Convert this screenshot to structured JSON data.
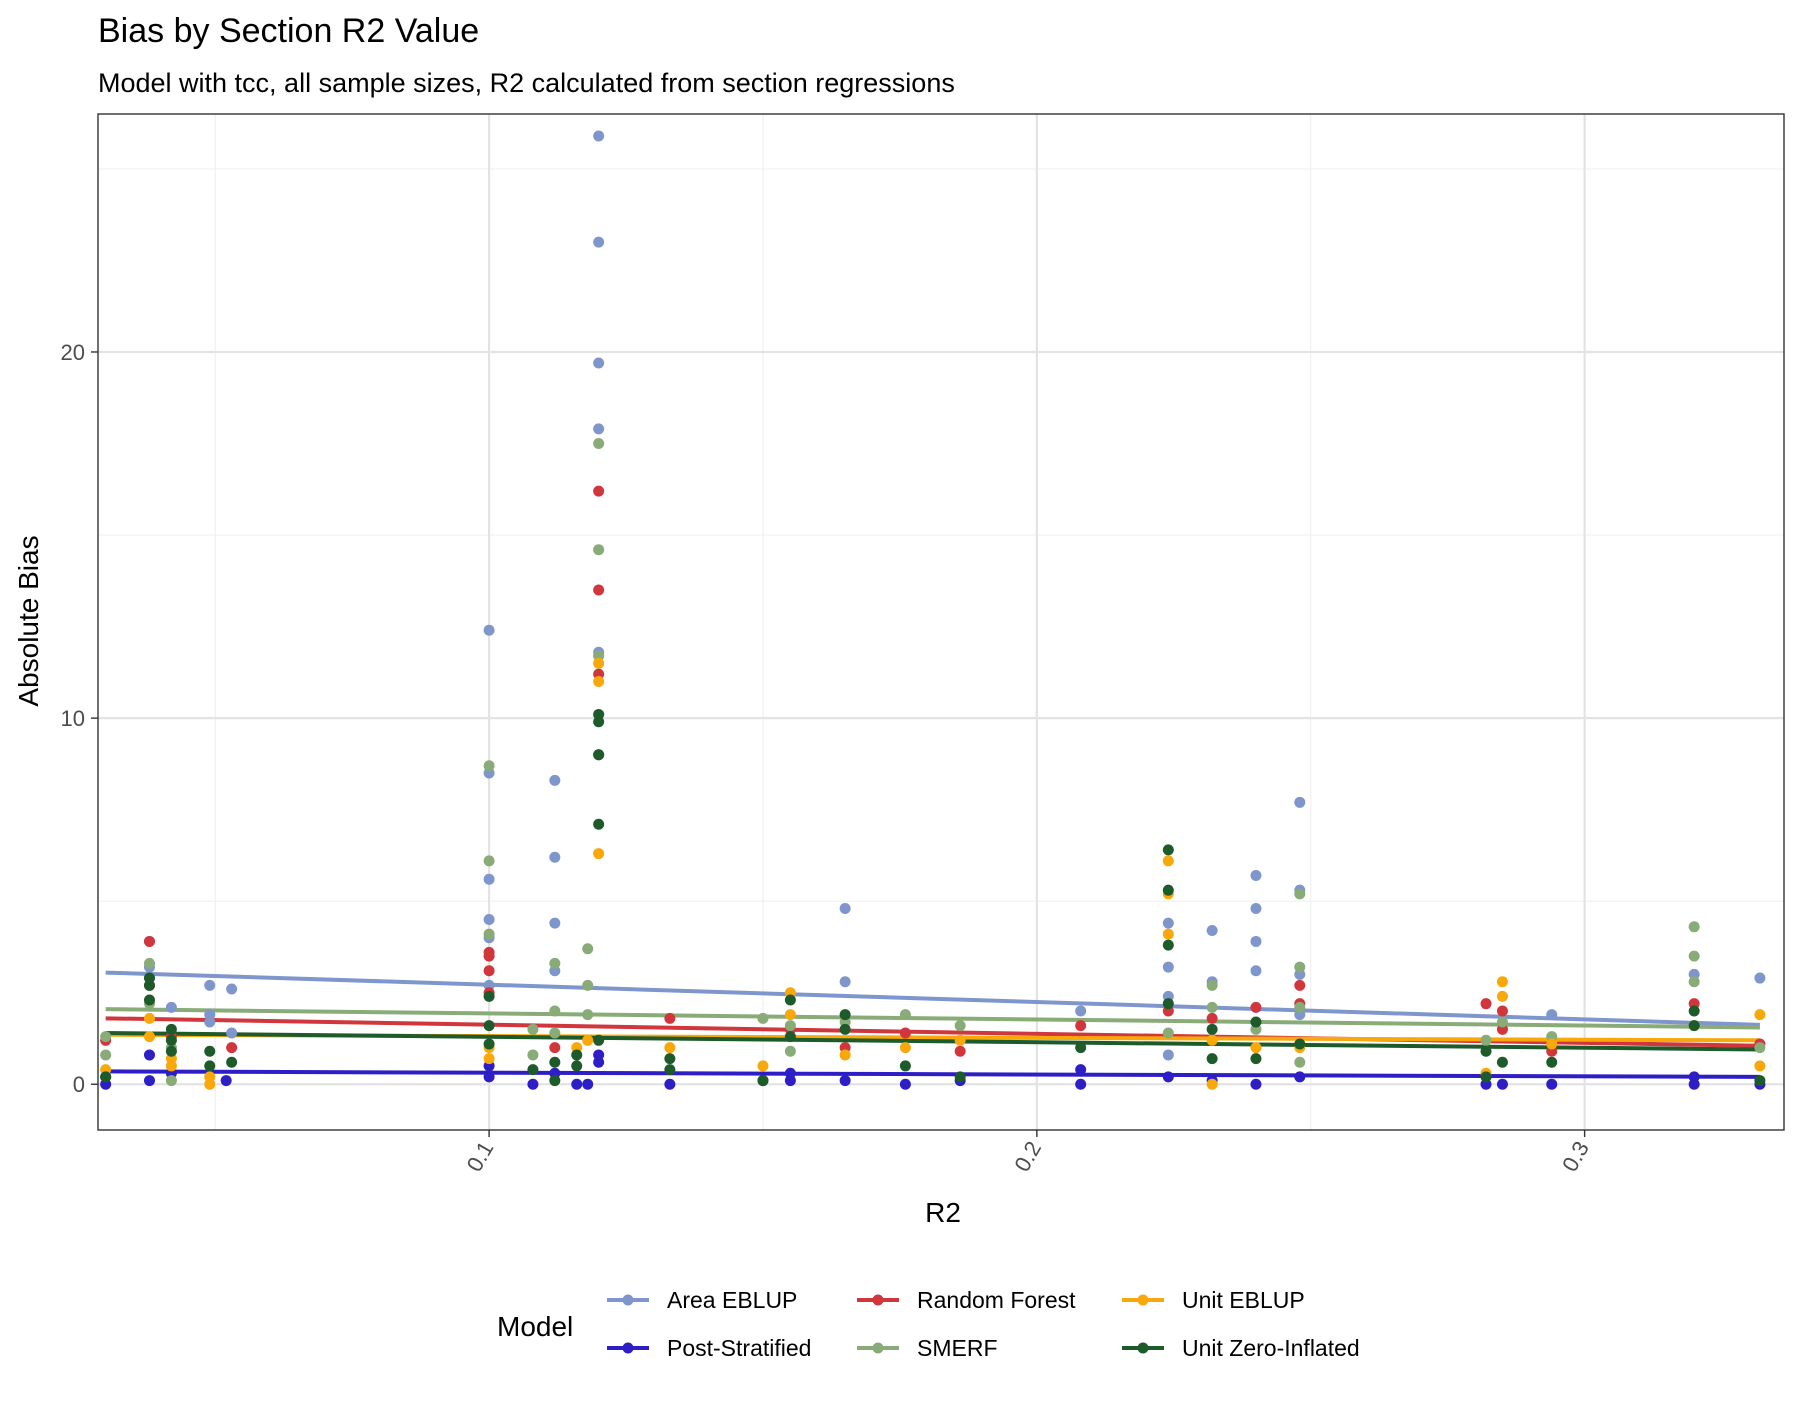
{
  "chart_data": {
    "type": "scatter",
    "title": "Bias by Section R2 Value",
    "subtitle": "Model with tcc, all sample sizes, R2 calculated from section regressions",
    "xlabel": "R2",
    "ylabel": "Absolute Bias",
    "xlim": [
      0.0286,
      0.3364
    ],
    "ylim": [
      -1.25,
      26.5
    ],
    "x_ticks": [
      0.1,
      0.2,
      0.3
    ],
    "x_tick_labels": [
      "0.1",
      "0.2",
      "0.3"
    ],
    "x_minor_ticks": [
      0.05,
      0.15,
      0.25
    ],
    "y_ticks": [
      0,
      10,
      20
    ],
    "y_tick_labels": [
      "0",
      "10",
      "20"
    ],
    "y_minor_ticks": [
      5,
      15,
      25
    ],
    "grid": true,
    "legend_title": "Model",
    "legend_position": "bottom",
    "series": [
      {
        "name": "Area EBLUP",
        "color": "#7f96cc",
        "trend": [
          [
            0.03,
            3.05
          ],
          [
            0.332,
            1.62
          ]
        ],
        "points": [
          [
            0.038,
            3.9
          ],
          [
            0.038,
            3.2
          ],
          [
            0.038,
            2.9
          ],
          [
            0.042,
            2.1
          ],
          [
            0.049,
            2.7
          ],
          [
            0.049,
            1.9
          ],
          [
            0.049,
            1.7
          ],
          [
            0.053,
            2.6
          ],
          [
            0.053,
            1.4
          ],
          [
            0.1,
            12.4
          ],
          [
            0.1,
            8.5
          ],
          [
            0.1,
            5.6
          ],
          [
            0.1,
            4.5
          ],
          [
            0.1,
            4.0
          ],
          [
            0.1,
            2.7
          ],
          [
            0.112,
            8.3
          ],
          [
            0.112,
            6.2
          ],
          [
            0.112,
            4.4
          ],
          [
            0.112,
            3.1
          ],
          [
            0.12,
            25.9
          ],
          [
            0.12,
            23.0
          ],
          [
            0.12,
            19.7
          ],
          [
            0.12,
            17.9
          ],
          [
            0.12,
            11.8
          ],
          [
            0.165,
            4.8
          ],
          [
            0.165,
            2.8
          ],
          [
            0.208,
            2.0
          ],
          [
            0.224,
            4.4
          ],
          [
            0.224,
            3.2
          ],
          [
            0.224,
            2.4
          ],
          [
            0.224,
            0.8
          ],
          [
            0.232,
            4.2
          ],
          [
            0.232,
            2.8
          ],
          [
            0.24,
            5.7
          ],
          [
            0.24,
            4.8
          ],
          [
            0.24,
            3.9
          ],
          [
            0.24,
            3.1
          ],
          [
            0.248,
            7.7
          ],
          [
            0.248,
            5.3
          ],
          [
            0.248,
            3.0
          ],
          [
            0.248,
            1.9
          ],
          [
            0.294,
            1.9
          ],
          [
            0.32,
            3.0
          ],
          [
            0.332,
            2.9
          ]
        ]
      },
      {
        "name": "Post-Stratified",
        "color": "#2d1ec6",
        "trend": [
          [
            0.03,
            0.35
          ],
          [
            0.332,
            0.2
          ]
        ],
        "points": [
          [
            0.03,
            0.0
          ],
          [
            0.03,
            0.2
          ],
          [
            0.038,
            0.1
          ],
          [
            0.038,
            0.8
          ],
          [
            0.042,
            0.3
          ],
          [
            0.052,
            0.1
          ],
          [
            0.1,
            0.2
          ],
          [
            0.1,
            0.5
          ],
          [
            0.108,
            0.0
          ],
          [
            0.112,
            0.3
          ],
          [
            0.116,
            0.0
          ],
          [
            0.118,
            0.0
          ],
          [
            0.12,
            0.6
          ],
          [
            0.12,
            0.8
          ],
          [
            0.133,
            0.0
          ],
          [
            0.15,
            0.1
          ],
          [
            0.155,
            0.1
          ],
          [
            0.155,
            0.3
          ],
          [
            0.165,
            0.1
          ],
          [
            0.176,
            0.0
          ],
          [
            0.186,
            0.1
          ],
          [
            0.208,
            0.0
          ],
          [
            0.208,
            0.4
          ],
          [
            0.224,
            0.2
          ],
          [
            0.232,
            0.1
          ],
          [
            0.24,
            0.0
          ],
          [
            0.248,
            0.2
          ],
          [
            0.282,
            0.0
          ],
          [
            0.285,
            0.0
          ],
          [
            0.294,
            0.0
          ],
          [
            0.32,
            0.0
          ],
          [
            0.32,
            0.2
          ],
          [
            0.332,
            0.0
          ]
        ]
      },
      {
        "name": "Random Forest",
        "color": "#d0363c",
        "trend": [
          [
            0.03,
            1.8
          ],
          [
            0.332,
            1.05
          ]
        ],
        "points": [
          [
            0.03,
            1.2
          ],
          [
            0.038,
            3.9
          ],
          [
            0.038,
            2.7
          ],
          [
            0.042,
            1.3
          ],
          [
            0.053,
            1.0
          ],
          [
            0.1,
            3.6
          ],
          [
            0.1,
            3.5
          ],
          [
            0.1,
            3.1
          ],
          [
            0.1,
            2.5
          ],
          [
            0.112,
            1.0
          ],
          [
            0.12,
            16.2
          ],
          [
            0.12,
            13.5
          ],
          [
            0.12,
            11.2
          ],
          [
            0.12,
            9.0
          ],
          [
            0.133,
            1.8
          ],
          [
            0.155,
            1.5
          ],
          [
            0.165,
            1.0
          ],
          [
            0.176,
            1.4
          ],
          [
            0.186,
            0.9
          ],
          [
            0.208,
            1.6
          ],
          [
            0.224,
            2.0
          ],
          [
            0.232,
            1.8
          ],
          [
            0.24,
            2.1
          ],
          [
            0.248,
            2.7
          ],
          [
            0.248,
            2.2
          ],
          [
            0.282,
            2.2
          ],
          [
            0.285,
            2.0
          ],
          [
            0.285,
            1.5
          ],
          [
            0.294,
            0.9
          ],
          [
            0.32,
            2.2
          ],
          [
            0.332,
            1.1
          ]
        ]
      },
      {
        "name": "SMERF",
        "color": "#88ab78",
        "trend": [
          [
            0.03,
            2.05
          ],
          [
            0.332,
            1.55
          ]
        ],
        "points": [
          [
            0.03,
            1.3
          ],
          [
            0.03,
            0.8
          ],
          [
            0.038,
            3.3
          ],
          [
            0.038,
            2.2
          ],
          [
            0.042,
            1.0
          ],
          [
            0.042,
            0.1
          ],
          [
            0.1,
            8.7
          ],
          [
            0.1,
            6.1
          ],
          [
            0.1,
            4.1
          ],
          [
            0.108,
            1.5
          ],
          [
            0.108,
            0.8
          ],
          [
            0.112,
            3.3
          ],
          [
            0.112,
            2.0
          ],
          [
            0.112,
            1.4
          ],
          [
            0.118,
            3.7
          ],
          [
            0.118,
            2.7
          ],
          [
            0.118,
            1.9
          ],
          [
            0.12,
            17.5
          ],
          [
            0.12,
            14.6
          ],
          [
            0.12,
            11.7
          ],
          [
            0.12,
            9.0
          ],
          [
            0.15,
            1.8
          ],
          [
            0.155,
            1.6
          ],
          [
            0.155,
            0.9
          ],
          [
            0.165,
            1.7
          ],
          [
            0.176,
            1.9
          ],
          [
            0.186,
            1.6
          ],
          [
            0.224,
            1.4
          ],
          [
            0.232,
            2.7
          ],
          [
            0.232,
            2.1
          ],
          [
            0.24,
            1.5
          ],
          [
            0.248,
            5.2
          ],
          [
            0.248,
            3.2
          ],
          [
            0.248,
            2.1
          ],
          [
            0.248,
            0.6
          ],
          [
            0.282,
            1.2
          ],
          [
            0.285,
            1.7
          ],
          [
            0.294,
            1.3
          ],
          [
            0.32,
            4.3
          ],
          [
            0.32,
            3.5
          ],
          [
            0.32,
            2.8
          ],
          [
            0.332,
            1.0
          ]
        ]
      },
      {
        "name": "Unit EBLUP",
        "color": "#f8a80a",
        "trend": [
          [
            0.03,
            1.35
          ],
          [
            0.332,
            1.2
          ]
        ],
        "points": [
          [
            0.03,
            0.4
          ],
          [
            0.038,
            1.8
          ],
          [
            0.038,
            1.3
          ],
          [
            0.042,
            0.7
          ],
          [
            0.042,
            0.5
          ],
          [
            0.049,
            0.2
          ],
          [
            0.049,
            0.0
          ],
          [
            0.1,
            1.0
          ],
          [
            0.1,
            0.7
          ],
          [
            0.116,
            1.0
          ],
          [
            0.12,
            11.5
          ],
          [
            0.12,
            11.0
          ],
          [
            0.12,
            6.3
          ],
          [
            0.118,
            1.2
          ],
          [
            0.133,
            1.0
          ],
          [
            0.15,
            0.5
          ],
          [
            0.155,
            2.5
          ],
          [
            0.155,
            1.9
          ],
          [
            0.165,
            0.8
          ],
          [
            0.176,
            1.0
          ],
          [
            0.186,
            1.2
          ],
          [
            0.224,
            6.1
          ],
          [
            0.224,
            5.2
          ],
          [
            0.224,
            4.1
          ],
          [
            0.232,
            1.2
          ],
          [
            0.232,
            0.0
          ],
          [
            0.24,
            1.0
          ],
          [
            0.248,
            1.0
          ],
          [
            0.282,
            0.3
          ],
          [
            0.285,
            2.8
          ],
          [
            0.285,
            2.4
          ],
          [
            0.294,
            1.1
          ],
          [
            0.32,
            1.6
          ],
          [
            0.332,
            1.9
          ],
          [
            0.332,
            0.5
          ]
        ]
      },
      {
        "name": "Unit Zero-Inflated",
        "color": "#1e5b2a",
        "trend": [
          [
            0.03,
            1.4
          ],
          [
            0.332,
            0.95
          ]
        ],
        "points": [
          [
            0.03,
            0.2
          ],
          [
            0.038,
            2.9
          ],
          [
            0.038,
            2.7
          ],
          [
            0.038,
            2.3
          ],
          [
            0.042,
            1.5
          ],
          [
            0.042,
            1.2
          ],
          [
            0.042,
            0.9
          ],
          [
            0.049,
            0.9
          ],
          [
            0.049,
            0.5
          ],
          [
            0.053,
            0.6
          ],
          [
            0.1,
            2.4
          ],
          [
            0.1,
            1.6
          ],
          [
            0.1,
            1.1
          ],
          [
            0.108,
            0.4
          ],
          [
            0.112,
            0.6
          ],
          [
            0.112,
            0.1
          ],
          [
            0.116,
            0.8
          ],
          [
            0.116,
            0.5
          ],
          [
            0.12,
            10.1
          ],
          [
            0.12,
            9.9
          ],
          [
            0.12,
            9.0
          ],
          [
            0.12,
            7.1
          ],
          [
            0.12,
            1.2
          ],
          [
            0.133,
            0.7
          ],
          [
            0.133,
            0.4
          ],
          [
            0.15,
            0.1
          ],
          [
            0.155,
            2.3
          ],
          [
            0.155,
            1.3
          ],
          [
            0.165,
            1.9
          ],
          [
            0.165,
            1.5
          ],
          [
            0.176,
            0.5
          ],
          [
            0.186,
            0.2
          ],
          [
            0.208,
            1.0
          ],
          [
            0.224,
            6.4
          ],
          [
            0.224,
            5.3
          ],
          [
            0.224,
            3.8
          ],
          [
            0.224,
            2.2
          ],
          [
            0.232,
            1.5
          ],
          [
            0.232,
            0.7
          ],
          [
            0.24,
            1.7
          ],
          [
            0.24,
            0.7
          ],
          [
            0.248,
            1.1
          ],
          [
            0.282,
            0.9
          ],
          [
            0.282,
            0.2
          ],
          [
            0.285,
            0.6
          ],
          [
            0.294,
            0.6
          ],
          [
            0.32,
            2.0
          ],
          [
            0.32,
            1.6
          ],
          [
            0.332,
            0.1
          ]
        ]
      }
    ]
  }
}
